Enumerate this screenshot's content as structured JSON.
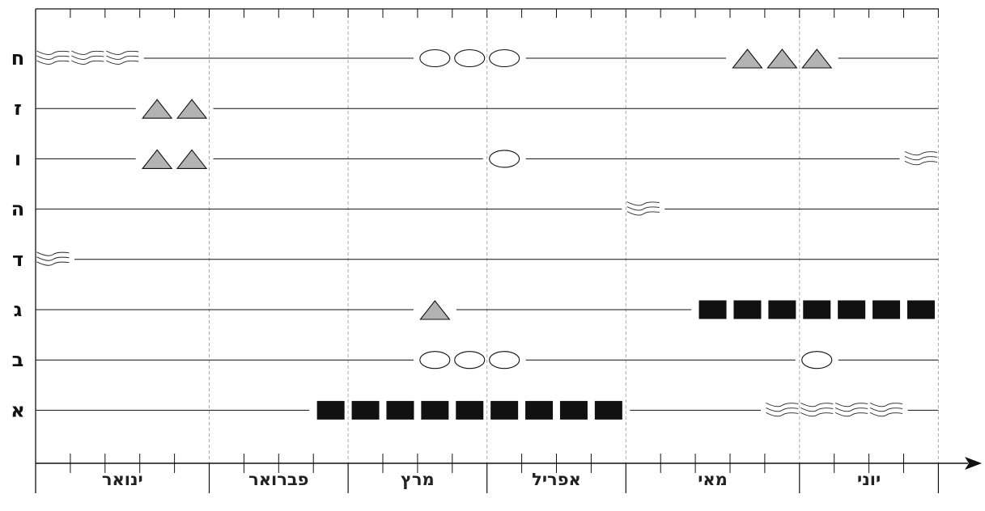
{
  "months": [
    {
      "label": "ינואר",
      "weeks": 5
    },
    {
      "label": "פברואר",
      "weeks": 4
    },
    {
      "label": "מרץ",
      "weeks": 4
    },
    {
      "label": "אפריל",
      "weeks": 4
    },
    {
      "label": "מאי",
      "weeks": 5
    },
    {
      "label": "יוני",
      "weeks": 4
    }
  ],
  "rows": [
    {
      "label": "ח",
      "events": [
        {
          "type": "wavy",
          "weeks": [
            0,
            1,
            2
          ]
        },
        {
          "type": "ellipse",
          "weeks": [
            11,
            12,
            13
          ]
        },
        {
          "type": "triangle",
          "weeks": [
            20,
            21,
            22
          ]
        }
      ]
    },
    {
      "label": "ז",
      "events": [
        {
          "type": "triangle",
          "weeks": [
            3,
            4
          ]
        }
      ]
    },
    {
      "label": "ו",
      "events": [
        {
          "type": "triangle",
          "weeks": [
            3,
            4
          ]
        },
        {
          "type": "ellipse",
          "weeks": [
            13
          ]
        },
        {
          "type": "wavy",
          "weeks": [
            25
          ]
        }
      ]
    },
    {
      "label": "ה",
      "events": [
        {
          "type": "wavy",
          "weeks": [
            17
          ]
        }
      ]
    },
    {
      "label": "ד",
      "events": [
        {
          "type": "wavy",
          "weeks": [
            0
          ]
        }
      ]
    },
    {
      "label": "ג",
      "events": [
        {
          "type": "triangle",
          "weeks": [
            11
          ]
        },
        {
          "type": "square",
          "weeks": [
            19,
            20,
            21,
            22,
            23,
            24,
            25
          ]
        }
      ]
    },
    {
      "label": "ב",
      "events": [
        {
          "type": "ellipse",
          "weeks": [
            11,
            12,
            13
          ]
        },
        {
          "type": "ellipse",
          "weeks": [
            22
          ]
        }
      ]
    },
    {
      "label": "א",
      "events": [
        {
          "type": "square",
          "weeks": [
            8,
            9,
            10,
            11,
            12,
            13,
            14,
            15,
            16
          ]
        },
        {
          "type": "wavy",
          "weeks": [
            21,
            22,
            23,
            24
          ]
        }
      ]
    }
  ],
  "colors": {
    "triangle_fill": "#b3b3b3",
    "square_fill": "#111111",
    "line": "#111111",
    "grid": "#aaaaaa"
  }
}
